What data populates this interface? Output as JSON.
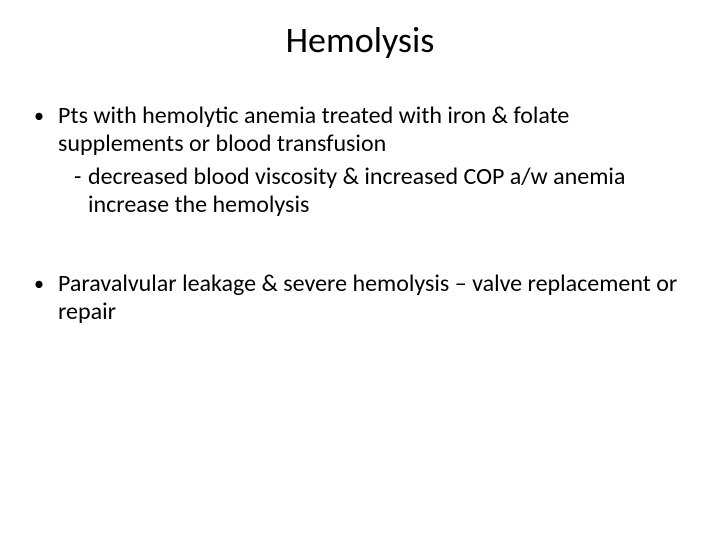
{
  "slide": {
    "title": "Hemolysis",
    "title_fontsize": 36,
    "body_fontsize": 24,
    "background_color": "#ffffff",
    "text_color": "#000000",
    "bullets": [
      {
        "text": "Pts with hemolytic anemia  treated with iron & folate supplements or blood transfusion",
        "sub": {
          "dash": "-",
          "text": "decreased blood viscosity & increased COP a/w anemia increase the hemolysis"
        }
      },
      {
        "text": "Paravalvular leakage & severe hemolysis – valve replacement or repair"
      }
    ],
    "bullet_glyph": "•"
  }
}
